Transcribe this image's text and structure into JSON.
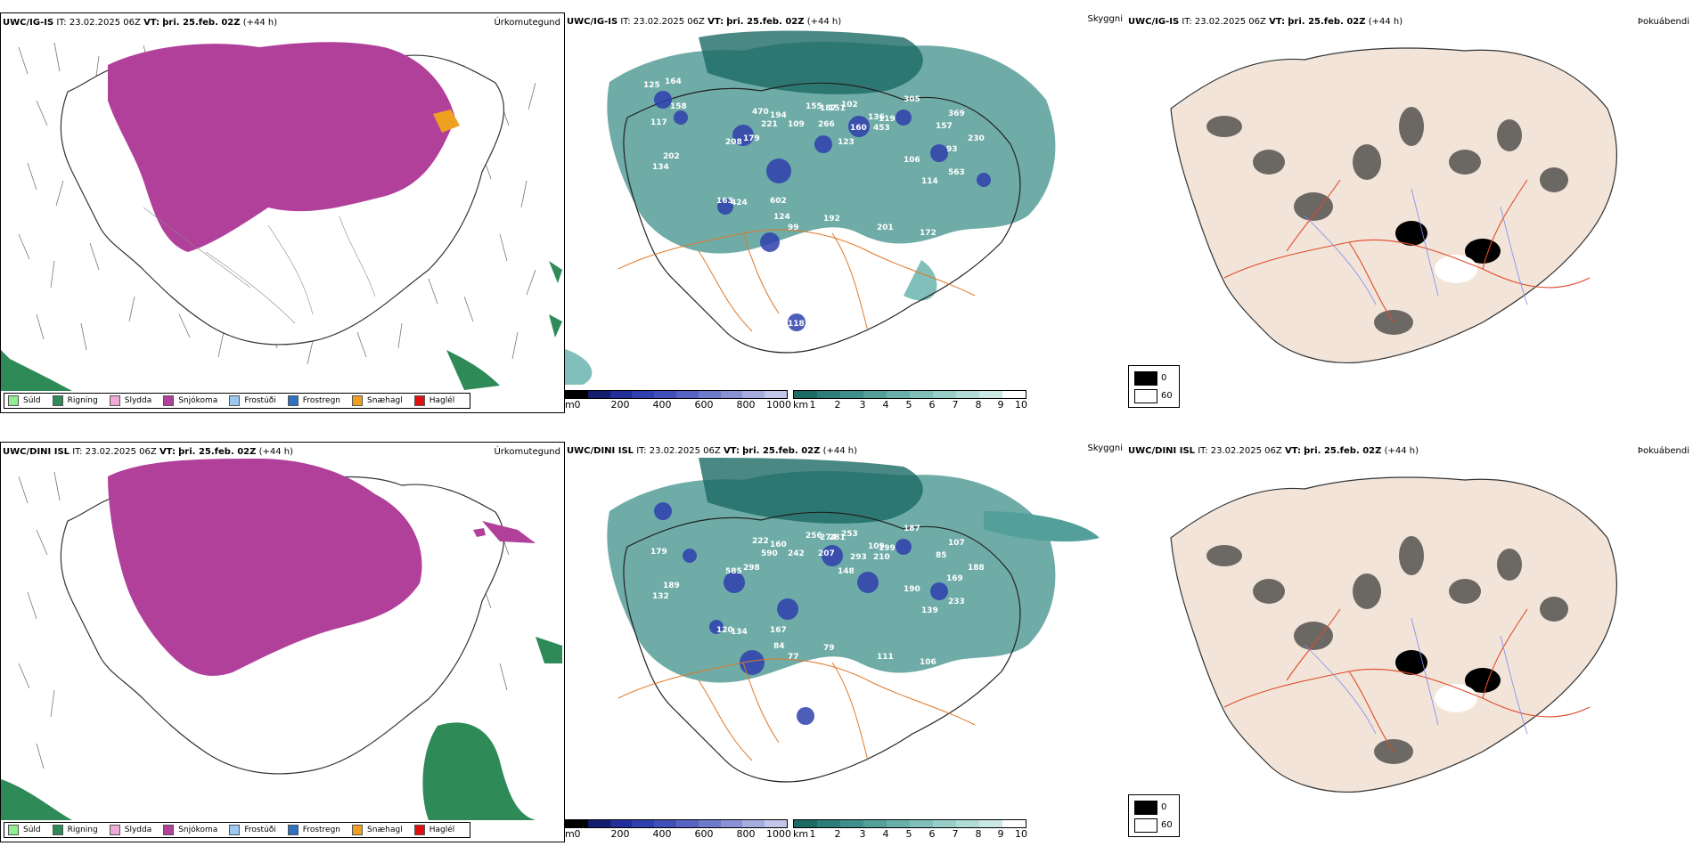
{
  "rows": [
    {
      "model": "UWC/IG-IS",
      "it_label": "IT:",
      "it": "23.02.2025 06Z",
      "vt_label": "VT:",
      "vt": "þri. 25.feb. 02Z",
      "lead": "(+44 h)"
    },
    {
      "model": "UWC/DINI ISL",
      "it_label": "IT:",
      "it": "23.02.2025 06Z",
      "vt_label": "VT:",
      "vt": "þri. 25.feb. 02Z",
      "lead": "(+44 h)"
    }
  ],
  "panel_titles": {
    "precip": "Úrkomutegund",
    "cloud": "Skyggni",
    "fog": "Þokuábendi"
  },
  "precip_legend": [
    {
      "label": "Súld",
      "color": "#90ee90"
    },
    {
      "label": "Rigning",
      "color": "#2e8b57"
    },
    {
      "label": "Slydda",
      "color": "#f0a8d8"
    },
    {
      "label": "Snjókoma",
      "color": "#b0409a"
    },
    {
      "label": "Frostúði",
      "color": "#9cc8f0"
    },
    {
      "label": "Frostregn",
      "color": "#3070c0"
    },
    {
      "label": "Snæhagl",
      "color": "#f0a020"
    },
    {
      "label": "Haglél",
      "color": "#e01010"
    }
  ],
  "colorbars": {
    "height": {
      "unit": "m",
      "ticks": [
        "0",
        "200",
        "400",
        "600",
        "800",
        "1000"
      ],
      "colors": [
        "#000000",
        "#141c6e",
        "#222f98",
        "#2f3fae",
        "#4150b8",
        "#5663c2",
        "#6e7acc",
        "#8a92d6",
        "#a6acdf",
        "#c2c6ea"
      ]
    },
    "visibility": {
      "unit": "km",
      "ticks": [
        "1",
        "2",
        "3",
        "4",
        "5",
        "6",
        "7",
        "8",
        "9",
        "10"
      ],
      "colors": [
        "#1b6a64",
        "#2c7e78",
        "#3f908a",
        "#53a09a",
        "#69b0aa",
        "#80bfba",
        "#98cdc8",
        "#b2dbd7",
        "#cce8e5",
        "#ffffff"
      ]
    }
  },
  "fog_legend": [
    {
      "label": "0",
      "color": "#000000"
    },
    {
      "label": "60",
      "color": "#ffffff"
    }
  ],
  "cloud_labels_top": [
    "125",
    "164",
    "158",
    "117",
    "202",
    "134",
    "208",
    "179",
    "470",
    "194",
    "221",
    "109",
    "155",
    "187",
    "151",
    "102",
    "266",
    "160",
    "136",
    "119",
    "453",
    "123",
    "305",
    "157",
    "369",
    "230",
    "93",
    "563",
    "114",
    "106",
    "163",
    "424",
    "602",
    "124",
    "99",
    "192",
    "201",
    "172",
    "128",
    "117",
    "109",
    "118",
    "111"
  ],
  "cloud_labels_bottom": [
    "179",
    "189",
    "132",
    "585",
    "298",
    "222",
    "160",
    "590",
    "242",
    "256",
    "274",
    "281",
    "253",
    "207",
    "293",
    "109",
    "199",
    "210",
    "148",
    "187",
    "85",
    "107",
    "188",
    "169",
    "233",
    "139",
    "190",
    "120",
    "134",
    "167",
    "84",
    "77",
    "79",
    "111",
    "106",
    "107"
  ]
}
